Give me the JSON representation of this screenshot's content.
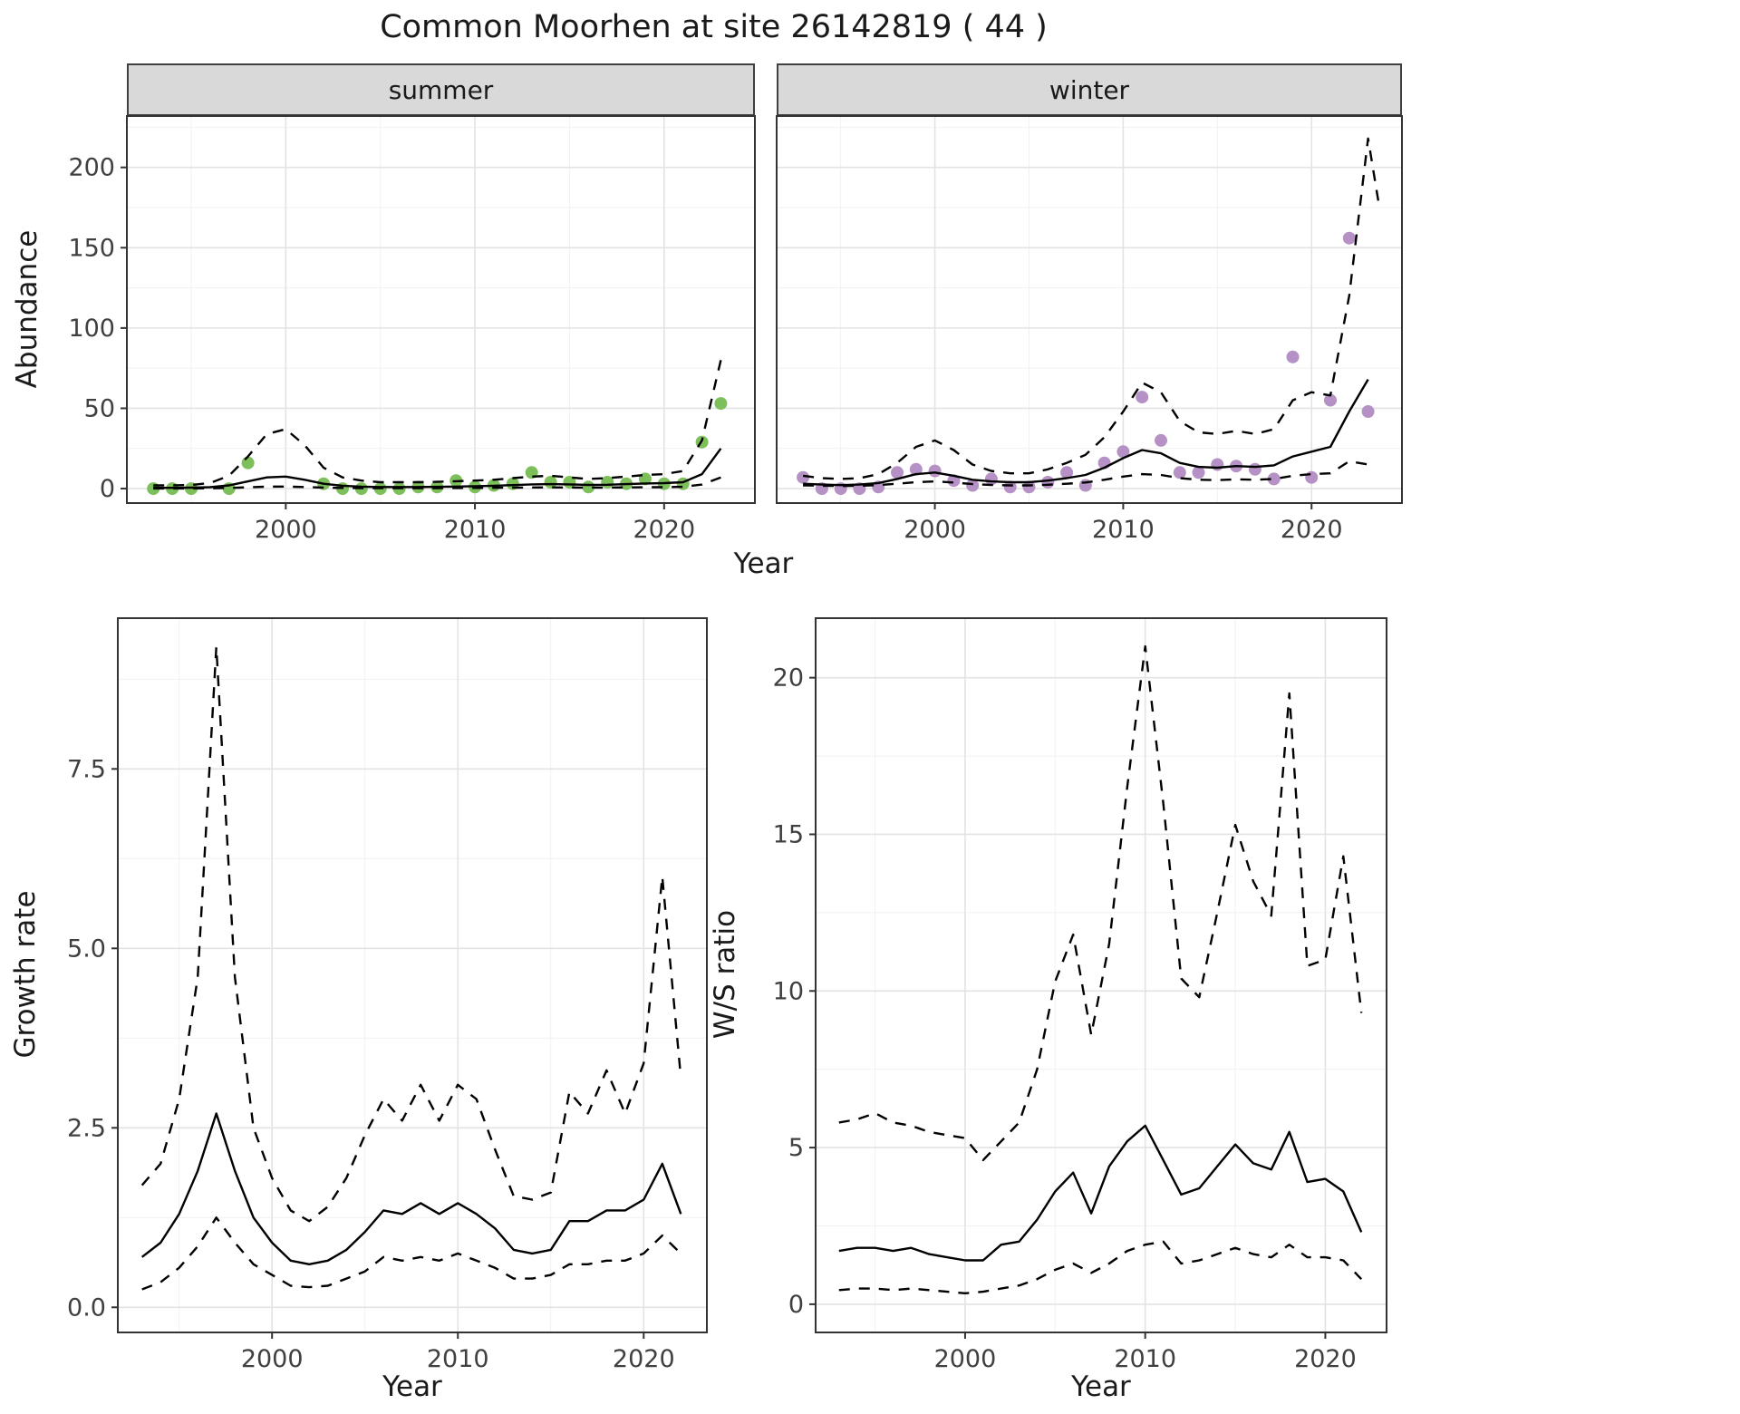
{
  "title": "Common Moorhen at site 26142819 ( 44 )",
  "labels": {
    "abundance_ylab": "Abundance",
    "top_xlab": "Year",
    "growth_ylab": "Growth rate",
    "growth_xlab": "Year",
    "ws_ylab": "W/S ratio",
    "ws_xlab": "Year"
  },
  "colors": {
    "summer_points": "#7dbf5a",
    "winter_points": "#b591c5",
    "fit_line": "#000000",
    "ci_line": "#000000",
    "strip_bg": "#d9d9d9",
    "grid_major": "#e3e3e3",
    "grid_minor": "#f1f1f1",
    "panel_border": "#333333",
    "tick_text": "#404040"
  },
  "chart_data": [
    {
      "id": "abundance_summer",
      "type": "line",
      "facet": "summer",
      "xlabel": "Year",
      "ylabel": "Abundance",
      "xlim": [
        1991.6,
        2024.8
      ],
      "ylim": [
        -9,
        232
      ],
      "xticks": [
        2000,
        2010,
        2020
      ],
      "xtick_labels": [
        "2000",
        "2010",
        "2020"
      ],
      "xminor": [
        1995,
        2005,
        2015
      ],
      "yticks": [
        0,
        50,
        100,
        150,
        200
      ],
      "ytick_labels": [
        "0",
        "50",
        "100",
        "150",
        "200"
      ],
      "yminor": [
        25,
        75,
        125,
        175,
        225
      ],
      "point_radius": 7,
      "years": [
        1993,
        1994,
        1995,
        1996,
        1997,
        1998,
        1999,
        2000,
        2001,
        2002,
        2003,
        2004,
        2005,
        2006,
        2007,
        2008,
        2009,
        2010,
        2011,
        2012,
        2013,
        2014,
        2015,
        2016,
        2017,
        2018,
        2019,
        2020,
        2021,
        2022,
        2023
      ],
      "series": [
        {
          "name": "observed",
          "kind": "points",
          "color": "#7dbf5a",
          "x": [
            1993,
            1994,
            1995,
            1997,
            1998,
            2002,
            2003,
            2004,
            2005,
            2006,
            2007,
            2008,
            2009,
            2010,
            2011,
            2012,
            2013,
            2014,
            2015,
            2016,
            2017,
            2018,
            2019,
            2020,
            2021,
            2022,
            2023
          ],
          "y": [
            0,
            0,
            0,
            0,
            16,
            3,
            0,
            0,
            0,
            0,
            1,
            1,
            5,
            1,
            2,
            3,
            10,
            4,
            4,
            1,
            4,
            3,
            6,
            3,
            3,
            29,
            53
          ]
        },
        {
          "name": "fit",
          "kind": "line",
          "y": [
            0.5,
            0.5,
            0.6,
            0.9,
            2,
            4.5,
            7,
            7.5,
            5.5,
            3,
            1.8,
            1.2,
            1,
            1,
            1,
            1.1,
            1.3,
            1.5,
            1.8,
            2.2,
            2.6,
            2.8,
            2.6,
            2.3,
            2.4,
            2.8,
            3.2,
            3.4,
            4,
            9,
            25
          ]
        },
        {
          "name": "ci-upper",
          "kind": "line",
          "dash": "12 10",
          "y": [
            2,
            2,
            2.3,
            3.5,
            8,
            20,
            34,
            37,
            27,
            13,
            7,
            5,
            4,
            4,
            4,
            4.2,
            4.6,
            5,
            5.5,
            6.5,
            7.5,
            8,
            7,
            6,
            6.5,
            7.5,
            8.5,
            9,
            11,
            30,
            80
          ]
        },
        {
          "name": "ci-lower",
          "kind": "line",
          "dash": "12 10",
          "y": [
            0.1,
            0.1,
            0.1,
            0.2,
            0.4,
            0.8,
            1.2,
            1.3,
            1,
            0.6,
            0.4,
            0.3,
            0.3,
            0.3,
            0.3,
            0.3,
            0.35,
            0.4,
            0.5,
            0.6,
            0.7,
            0.75,
            0.7,
            0.6,
            0.65,
            0.75,
            0.85,
            0.9,
            1.1,
            2.5,
            7
          ]
        }
      ]
    },
    {
      "id": "abundance_winter",
      "type": "line",
      "facet": "winter",
      "xlabel": "Year",
      "ylabel": "Abundance",
      "xlim": [
        1991.6,
        2024.8
      ],
      "ylim": [
        -9,
        232
      ],
      "xticks": [
        2000,
        2010,
        2020
      ],
      "xtick_labels": [
        "2000",
        "2010",
        "2020"
      ],
      "xminor": [
        1995,
        2005,
        2015
      ],
      "yticks": [
        0,
        50,
        100,
        150,
        200
      ],
      "ytick_labels": [
        "0",
        "50",
        "100",
        "150",
        "200"
      ],
      "yminor": [
        25,
        75,
        125,
        175,
        225
      ],
      "point_radius": 7,
      "years": [
        1993,
        1994,
        1995,
        1996,
        1997,
        1998,
        1999,
        2000,
        2001,
        2002,
        2003,
        2004,
        2005,
        2006,
        2007,
        2008,
        2009,
        2010,
        2011,
        2012,
        2013,
        2014,
        2015,
        2016,
        2017,
        2018,
        2019,
        2020,
        2021,
        2022,
        2023
      ],
      "series": [
        {
          "name": "observed",
          "kind": "points",
          "color": "#b591c5",
          "x": [
            1993,
            1994,
            1995,
            1996,
            1997,
            1998,
            1999,
            2000,
            2001,
            2002,
            2003,
            2004,
            2005,
            2006,
            2007,
            2008,
            2009,
            2010,
            2011,
            2012,
            2013,
            2014,
            2015,
            2016,
            2017,
            2018,
            2019,
            2020,
            2021,
            2022,
            2023
          ],
          "y": [
            7,
            0,
            0,
            0,
            1,
            10,
            12,
            11,
            5,
            2,
            6,
            1,
            1,
            4,
            10,
            2,
            16,
            23,
            57,
            30,
            10,
            10,
            15,
            14,
            12,
            6,
            82,
            7,
            55,
            156,
            48
          ]
        },
        {
          "name": "fit",
          "kind": "line",
          "y": [
            3,
            2.5,
            2.2,
            2.5,
            3.5,
            6,
            9,
            10,
            8,
            5.5,
            4.5,
            4,
            4,
            5,
            6.5,
            8.5,
            13,
            19,
            24,
            22,
            16,
            13.5,
            13,
            14,
            13.5,
            14.5,
            20,
            23,
            26,
            48,
            68
          ]
        },
        {
          "name": "ci-upper",
          "kind": "line",
          "dash": "12 10",
          "x": [
            1993,
            1994,
            1995,
            1996,
            1997,
            1998,
            1999,
            2000,
            2001,
            2002,
            2003,
            2004,
            2005,
            2006,
            2007,
            2008,
            2009,
            2010,
            2011,
            2012,
            2013,
            2014,
            2015,
            2016,
            2017,
            2018,
            2019,
            2020,
            2021,
            2022,
            2023,
            2023.6
          ],
          "y": [
            8,
            6.5,
            6,
            6.5,
            9,
            16,
            26,
            30,
            24,
            15,
            11,
            9.5,
            9.5,
            12,
            16,
            21,
            32,
            48,
            66,
            60,
            42,
            35,
            34,
            36,
            34,
            37,
            55,
            60,
            58,
            120,
            218,
            175
          ]
        },
        {
          "name": "ci-lower",
          "kind": "line",
          "dash": "12 10",
          "y": [
            2,
            1.8,
            1.6,
            1.8,
            2.2,
            3,
            4,
            4.5,
            3.8,
            2.8,
            2.3,
            2,
            2,
            2.4,
            3,
            3.8,
            5.5,
            7.5,
            9,
            8.5,
            6.5,
            5.5,
            5.3,
            5.8,
            5.5,
            6,
            8,
            9,
            9.5,
            17,
            15
          ]
        }
      ]
    },
    {
      "id": "growth_rate",
      "type": "line",
      "facet": null,
      "xlabel": "Year",
      "ylabel": "Growth rate",
      "xlim": [
        1991.7,
        2023.4
      ],
      "ylim": [
        -0.35,
        9.6
      ],
      "xticks": [
        2000,
        2010,
        2020
      ],
      "xtick_labels": [
        "2000",
        "2010",
        "2020"
      ],
      "xminor": [
        1995,
        2005,
        2015
      ],
      "yticks": [
        0,
        2.5,
        5,
        7.5
      ],
      "ytick_labels": [
        "0.0",
        "2.5",
        "5.0",
        "7.5"
      ],
      "yminor": [
        1.25,
        3.75,
        6.25,
        8.75
      ],
      "years": [
        1993,
        1994,
        1995,
        1996,
        1997,
        1998,
        1999,
        2000,
        2001,
        2002,
        2003,
        2004,
        2005,
        2006,
        2007,
        2008,
        2009,
        2010,
        2011,
        2012,
        2013,
        2014,
        2015,
        2016,
        2017,
        2018,
        2019,
        2020,
        2021,
        2022
      ],
      "series": [
        {
          "name": "fit",
          "kind": "line",
          "y": [
            0.7,
            0.9,
            1.3,
            1.9,
            2.7,
            1.9,
            1.25,
            0.9,
            0.65,
            0.6,
            0.65,
            0.8,
            1.05,
            1.35,
            1.3,
            1.45,
            1.3,
            1.45,
            1.3,
            1.1,
            0.8,
            0.75,
            0.8,
            1.2,
            1.2,
            1.35,
            1.35,
            1.5,
            2.0,
            1.3
          ]
        },
        {
          "name": "ci-upper",
          "kind": "line",
          "dash": "12 10",
          "y": [
            1.7,
            2.0,
            2.9,
            4.6,
            9.2,
            4.6,
            2.5,
            1.8,
            1.35,
            1.2,
            1.4,
            1.8,
            2.4,
            2.9,
            2.6,
            3.1,
            2.6,
            3.1,
            2.9,
            2.2,
            1.55,
            1.5,
            1.6,
            3.0,
            2.7,
            3.3,
            2.7,
            3.4,
            6.0,
            3.2
          ]
        },
        {
          "name": "ci-lower",
          "kind": "line",
          "dash": "12 10",
          "y": [
            0.25,
            0.35,
            0.55,
            0.85,
            1.25,
            0.9,
            0.6,
            0.45,
            0.3,
            0.28,
            0.3,
            0.4,
            0.5,
            0.7,
            0.65,
            0.7,
            0.65,
            0.75,
            0.65,
            0.55,
            0.4,
            0.4,
            0.45,
            0.6,
            0.6,
            0.65,
            0.65,
            0.75,
            1.0,
            0.75
          ]
        }
      ]
    },
    {
      "id": "ws_ratio",
      "type": "line",
      "facet": null,
      "xlabel": "Year",
      "ylabel": "W/S ratio",
      "xlim": [
        1991.7,
        2023.4
      ],
      "ylim": [
        -0.9,
        21.9
      ],
      "xticks": [
        2000,
        2010,
        2020
      ],
      "xtick_labels": [
        "2000",
        "2010",
        "2020"
      ],
      "xminor": [
        1995,
        2005,
        2015
      ],
      "yticks": [
        0,
        5,
        10,
        15,
        20
      ],
      "ytick_labels": [
        "0",
        "5",
        "10",
        "15",
        "20"
      ],
      "yminor": [
        2.5,
        7.5,
        12.5,
        17.5
      ],
      "years": [
        1993,
        1994,
        1995,
        1996,
        1997,
        1998,
        1999,
        2000,
        2001,
        2002,
        2003,
        2004,
        2005,
        2006,
        2007,
        2008,
        2009,
        2010,
        2011,
        2012,
        2013,
        2014,
        2015,
        2016,
        2017,
        2018,
        2019,
        2020,
        2021,
        2022
      ],
      "series": [
        {
          "name": "fit",
          "kind": "line",
          "y": [
            1.7,
            1.8,
            1.8,
            1.7,
            1.8,
            1.6,
            1.5,
            1.4,
            1.4,
            1.9,
            2.0,
            2.7,
            3.6,
            4.2,
            2.9,
            4.4,
            5.2,
            5.7,
            4.6,
            3.5,
            3.7,
            4.4,
            5.1,
            4.5,
            4.3,
            5.5,
            3.9,
            4.0,
            3.6,
            2.3
          ]
        },
        {
          "name": "ci-upper",
          "kind": "line",
          "dash": "12 10",
          "y": [
            5.8,
            5.9,
            6.1,
            5.8,
            5.7,
            5.5,
            5.4,
            5.3,
            4.6,
            5.2,
            5.8,
            7.5,
            10.3,
            11.8,
            8.6,
            11.5,
            16.5,
            21.0,
            16.0,
            10.4,
            9.8,
            12.5,
            15.3,
            13.5,
            12.4,
            19.5,
            10.8,
            11.0,
            14.3,
            9.3
          ]
        },
        {
          "name": "ci-lower",
          "kind": "line",
          "dash": "12 10",
          "y": [
            0.45,
            0.5,
            0.5,
            0.45,
            0.5,
            0.45,
            0.4,
            0.35,
            0.4,
            0.5,
            0.6,
            0.8,
            1.1,
            1.3,
            1.0,
            1.3,
            1.7,
            1.9,
            2.0,
            1.3,
            1.4,
            1.6,
            1.8,
            1.6,
            1.5,
            1.9,
            1.5,
            1.5,
            1.4,
            0.8
          ]
        }
      ]
    }
  ]
}
